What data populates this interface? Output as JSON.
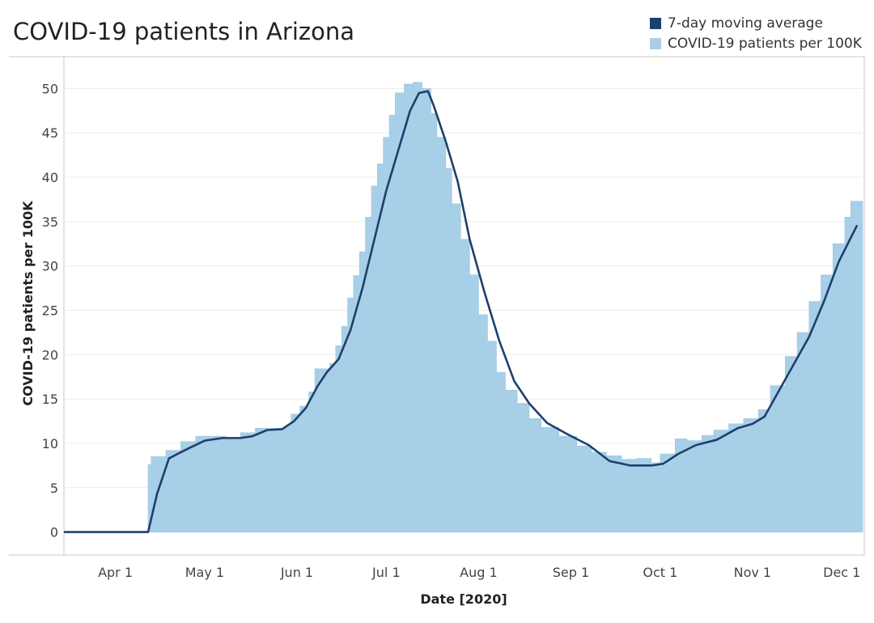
{
  "chart_data": {
    "type": "area",
    "title": "COVID-19 patients in Arizona",
    "xlabel": "Date [2020]",
    "ylabel": "COVID-19 patients per 100K",
    "x_range": [
      "2020-03-15",
      "2020-12-08"
    ],
    "ylim": [
      -2.5,
      53.5
    ],
    "y_ticks": [
      0,
      5,
      10,
      15,
      20,
      25,
      30,
      35,
      40,
      45,
      50
    ],
    "x_ticks": [
      {
        "label": "Apr 1",
        "date": "2020-04-01"
      },
      {
        "label": "May 1",
        "date": "2020-05-01"
      },
      {
        "label": "Jun 1",
        "date": "2020-06-01"
      },
      {
        "label": "Jul 1",
        "date": "2020-07-01"
      },
      {
        "label": "Aug 1",
        "date": "2020-08-01"
      },
      {
        "label": "Sep 1",
        "date": "2020-09-01"
      },
      {
        "label": "Oct 1",
        "date": "2020-10-01"
      },
      {
        "label": "Nov 1",
        "date": "2020-11-01"
      },
      {
        "label": "Dec 1",
        "date": "2020-12-01"
      }
    ],
    "grid": true,
    "legend": "top-right",
    "series": [
      {
        "name": "7-day moving average",
        "style": "line",
        "color": "#1f3f6b",
        "points": [
          [
            "2020-03-15",
            0
          ],
          [
            "2020-04-12",
            0
          ],
          [
            "2020-04-15",
            4.3
          ],
          [
            "2020-04-19",
            8.3
          ],
          [
            "2020-04-23",
            9.0
          ],
          [
            "2020-04-26",
            9.5
          ],
          [
            "2020-05-01",
            10.3
          ],
          [
            "2020-05-07",
            10.6
          ],
          [
            "2020-05-13",
            10.6
          ],
          [
            "2020-05-17",
            10.8
          ],
          [
            "2020-05-22",
            11.5
          ],
          [
            "2020-05-27",
            11.6
          ],
          [
            "2020-05-31",
            12.5
          ],
          [
            "2020-06-04",
            14.0
          ],
          [
            "2020-06-08",
            16.5
          ],
          [
            "2020-06-11",
            18.0
          ],
          [
            "2020-06-15",
            19.5
          ],
          [
            "2020-06-19",
            22.8
          ],
          [
            "2020-06-23",
            27.5
          ],
          [
            "2020-06-27",
            33.0
          ],
          [
            "2020-07-01",
            38.5
          ],
          [
            "2020-07-05",
            43.0
          ],
          [
            "2020-07-09",
            47.5
          ],
          [
            "2020-07-12",
            49.5
          ],
          [
            "2020-07-15",
            49.7
          ],
          [
            "2020-07-17",
            48.0
          ],
          [
            "2020-07-21",
            44.0
          ],
          [
            "2020-07-25",
            39.5
          ],
          [
            "2020-07-29",
            33.0
          ],
          [
            "2020-08-03",
            27.0
          ],
          [
            "2020-08-08",
            21.5
          ],
          [
            "2020-08-13",
            17.0
          ],
          [
            "2020-08-18",
            14.5
          ],
          [
            "2020-08-24",
            12.3
          ],
          [
            "2020-08-31",
            11.0
          ],
          [
            "2020-09-07",
            9.8
          ],
          [
            "2020-09-14",
            8.0
          ],
          [
            "2020-09-21",
            7.5
          ],
          [
            "2020-09-28",
            7.5
          ],
          [
            "2020-10-02",
            7.7
          ],
          [
            "2020-10-07",
            8.8
          ],
          [
            "2020-10-13",
            9.8
          ],
          [
            "2020-10-20",
            10.4
          ],
          [
            "2020-10-27",
            11.7
          ],
          [
            "2020-11-01",
            12.2
          ],
          [
            "2020-11-05",
            13.0
          ],
          [
            "2020-11-10",
            16.0
          ],
          [
            "2020-11-15",
            19.0
          ],
          [
            "2020-11-20",
            22.0
          ],
          [
            "2020-11-25",
            26.0
          ],
          [
            "2020-11-30",
            30.5
          ],
          [
            "2020-12-06",
            34.5
          ]
        ]
      },
      {
        "name": "COVID-19 patients per 100K",
        "style": "step-area",
        "color": "#a8cfe8",
        "points": [
          [
            "2020-03-15",
            0
          ],
          [
            "2020-04-11",
            0
          ],
          [
            "2020-04-12",
            7.6
          ],
          [
            "2020-04-13",
            8.5
          ],
          [
            "2020-04-18",
            9.2
          ],
          [
            "2020-04-23",
            10.2
          ],
          [
            "2020-04-28",
            10.8
          ],
          [
            "2020-05-08",
            10.6
          ],
          [
            "2020-05-13",
            11.2
          ],
          [
            "2020-05-18",
            11.7
          ],
          [
            "2020-05-28",
            12.0
          ],
          [
            "2020-05-30",
            13.3
          ],
          [
            "2020-06-02",
            14.2
          ],
          [
            "2020-06-05",
            15.8
          ],
          [
            "2020-06-07",
            18.4
          ],
          [
            "2020-06-12",
            19.0
          ],
          [
            "2020-06-14",
            21.0
          ],
          [
            "2020-06-16",
            23.2
          ],
          [
            "2020-06-18",
            26.4
          ],
          [
            "2020-06-20",
            28.9
          ],
          [
            "2020-06-22",
            31.6
          ],
          [
            "2020-06-24",
            35.5
          ],
          [
            "2020-06-26",
            39.0
          ],
          [
            "2020-06-28",
            41.5
          ],
          [
            "2020-06-30",
            44.5
          ],
          [
            "2020-07-02",
            47.0
          ],
          [
            "2020-07-04",
            49.5
          ],
          [
            "2020-07-07",
            50.5
          ],
          [
            "2020-07-10",
            50.7
          ],
          [
            "2020-07-13",
            50.0
          ],
          [
            "2020-07-16",
            47.2
          ],
          [
            "2020-07-18",
            44.5
          ],
          [
            "2020-07-21",
            41.0
          ],
          [
            "2020-07-23",
            37.0
          ],
          [
            "2020-07-26",
            33.0
          ],
          [
            "2020-07-29",
            29.0
          ],
          [
            "2020-08-01",
            24.5
          ],
          [
            "2020-08-04",
            21.5
          ],
          [
            "2020-08-07",
            18.0
          ],
          [
            "2020-08-10",
            16.0
          ],
          [
            "2020-08-14",
            14.5
          ],
          [
            "2020-08-18",
            12.8
          ],
          [
            "2020-08-22",
            11.8
          ],
          [
            "2020-08-28",
            10.8
          ],
          [
            "2020-09-03",
            9.7
          ],
          [
            "2020-09-08",
            9.0
          ],
          [
            "2020-09-13",
            8.6
          ],
          [
            "2020-09-18",
            8.2
          ],
          [
            "2020-09-23",
            8.3
          ],
          [
            "2020-09-28",
            7.8
          ],
          [
            "2020-10-01",
            8.8
          ],
          [
            "2020-10-06",
            10.5
          ],
          [
            "2020-10-10",
            10.3
          ],
          [
            "2020-10-15",
            10.9
          ],
          [
            "2020-10-19",
            11.5
          ],
          [
            "2020-10-24",
            12.2
          ],
          [
            "2020-10-29",
            12.8
          ],
          [
            "2020-11-03",
            13.8
          ],
          [
            "2020-11-07",
            16.5
          ],
          [
            "2020-11-12",
            19.8
          ],
          [
            "2020-11-16",
            22.5
          ],
          [
            "2020-11-20",
            26.0
          ],
          [
            "2020-11-24",
            29.0
          ],
          [
            "2020-11-28",
            32.5
          ],
          [
            "2020-12-02",
            35.5
          ],
          [
            "2020-12-04",
            37.3
          ],
          [
            "2020-12-08",
            37.3
          ]
        ]
      }
    ]
  }
}
